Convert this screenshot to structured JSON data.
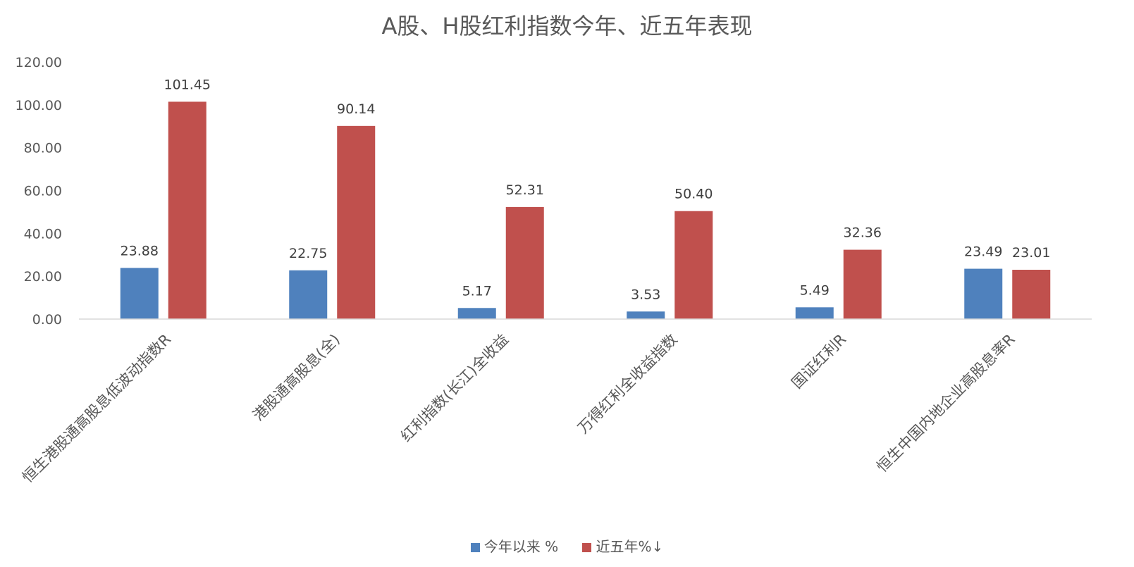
{
  "chart_data": {
    "type": "bar",
    "title": "A股、H股红利指数今年、近五年表现",
    "categories": [
      "恒生港股通高股息低波动指数R",
      "港股通高股息(全)",
      "红利指数(长江)全收益",
      "万得红利全收益指数",
      "国证红利R",
      "恒生中国内地企业高股息率R"
    ],
    "series": [
      {
        "name": "今年以来 %",
        "color": "#4F81BD",
        "values": [
          23.88,
          22.75,
          5.17,
          3.53,
          5.49,
          23.49
        ]
      },
      {
        "name": "近五年%↓",
        "color": "#C0504D",
        "values": [
          101.45,
          90.14,
          52.31,
          50.4,
          32.36,
          23.01
        ]
      }
    ],
    "ylim": [
      0,
      120
    ],
    "yticks": [
      "0.00",
      "20.00",
      "40.00",
      "60.00",
      "80.00",
      "100.00",
      "120.00"
    ],
    "grid": false,
    "legend_position": "bottom"
  }
}
